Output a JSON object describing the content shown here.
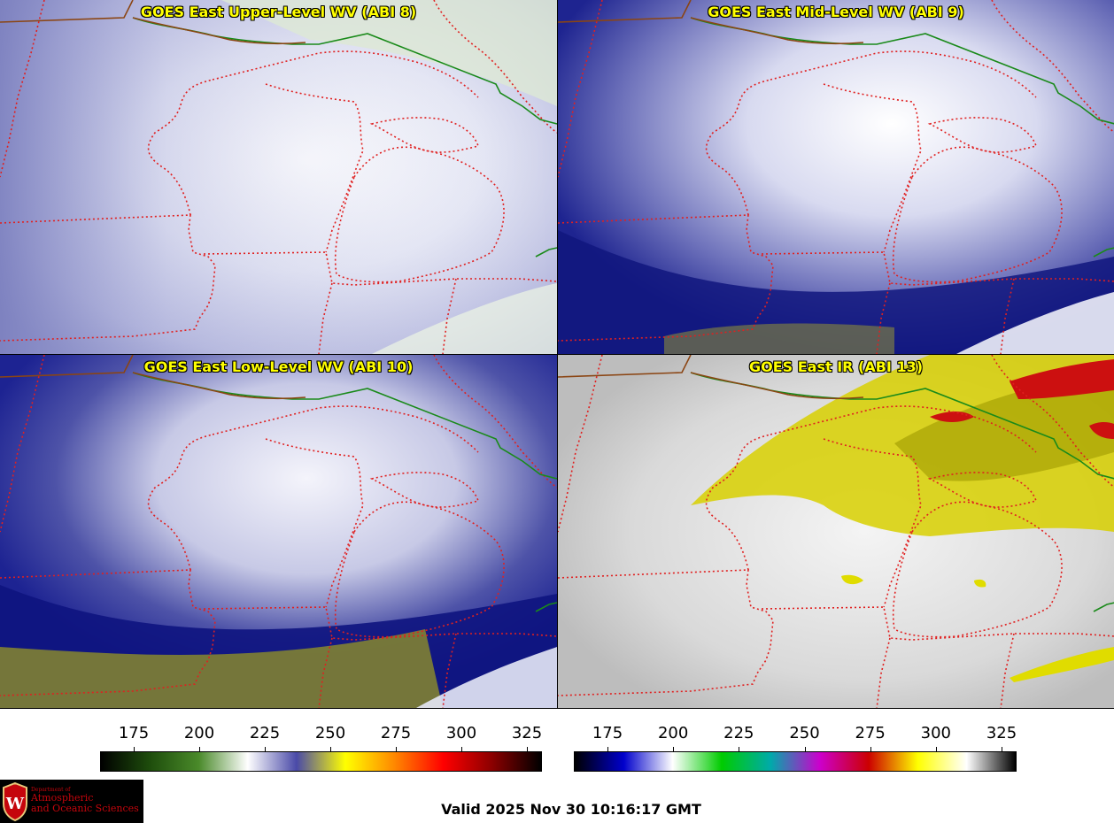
{
  "panels": [
    {
      "title": "GOES East Upper-Level WV (ABI 8)",
      "icon": "water-vapor-map"
    },
    {
      "title": "GOES East Mid-Level WV (ABI 9)",
      "icon": "water-vapor-map"
    },
    {
      "title": "GOES East Low-Level WV (ABI 10)",
      "icon": "water-vapor-map"
    },
    {
      "title": "GOES East IR (ABI 13)",
      "icon": "infrared-map"
    }
  ],
  "colorbars": [
    {
      "ticks": [
        "175",
        "200",
        "225",
        "250",
        "275",
        "300",
        "325"
      ],
      "colors": [
        "#000000",
        "#1e4d0c",
        "#4a8a2a",
        "#ffffff",
        "#4a4aa8",
        "#ffff00",
        "#ff8800",
        "#ff0000",
        "#8b0000",
        "#000000"
      ]
    },
    {
      "ticks": [
        "175",
        "200",
        "225",
        "250",
        "275",
        "300",
        "325"
      ],
      "colors": [
        "#000000",
        "#0000cc",
        "#ffffff",
        "#00cc00",
        "#00aaaa",
        "#cc00cc",
        "#cc0000",
        "#ffff00",
        "#ffffff",
        "#000000"
      ]
    }
  ],
  "valid_time": "Valid 2025 Nov 30 10:16:17 GMT",
  "logo": {
    "line1": "Department of",
    "line2": "Atmospheric",
    "line3": "and Oceanic Sciences",
    "color": "#c5050c"
  }
}
